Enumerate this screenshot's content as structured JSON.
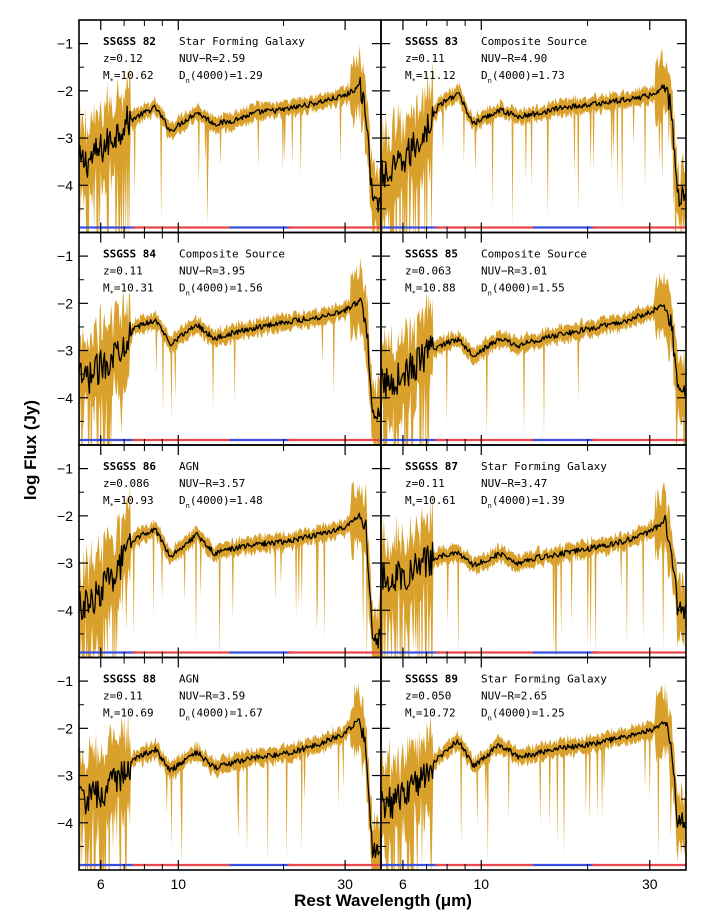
{
  "figure": {
    "ylabel": "log Flux (Jy)",
    "xlabel": "Rest Wavelength (μm)"
  },
  "style": {
    "error_color": "#d9a12b",
    "spectrum_color": "#000000",
    "bar_red": "#e8474b",
    "bar_blue": "#3b4fe0"
  },
  "chart_data": {
    "type": "line",
    "layout": "grid 4x2 panels, shared axes",
    "xscale": "log",
    "xlim": [
      5.2,
      38
    ],
    "ylim": [
      -5,
      -0.5
    ],
    "xticks_major": [
      6,
      10,
      30
    ],
    "xticks_minor": [
      5,
      7,
      8,
      9,
      20,
      40
    ],
    "yticks": [
      -4,
      -3,
      -2,
      -1
    ],
    "legend": "none",
    "grid": false,
    "coverage_bars": [
      {
        "color": "blue",
        "x": [
          5.2,
          7.6
        ]
      },
      {
        "color": "red",
        "x": [
          7.4,
          14.2
        ]
      },
      {
        "color": "blue",
        "x": [
          14.0,
          21.3
        ]
      },
      {
        "color": "red",
        "x": [
          20.6,
          38.0
        ]
      }
    ],
    "panels": [
      {
        "id": "SSGSS 82",
        "klass": "Star Forming Galaxy",
        "z": "z=0.12",
        "mass_val": "=10.62",
        "nuvr": "NUV−R=2.59",
        "dn_val": "(4000)=1.29",
        "series": {
          "x": [
            5.5,
            6.3,
            7.0,
            7.6,
            8.6,
            9.5,
            11.3,
            12.7,
            14.0,
            17.0,
            20.0,
            25.0,
            30.0,
            33.0,
            34.5,
            36.0
          ],
          "y": [
            -3.5,
            -3.1,
            -2.7,
            -2.55,
            -2.35,
            -2.85,
            -2.45,
            -2.7,
            -2.65,
            -2.45,
            -2.4,
            -2.25,
            -2.1,
            -1.9,
            -2.5,
            -4.4
          ]
        }
      },
      {
        "id": "SSGSS 83",
        "klass": "Composite Source",
        "z": "z=0.11",
        "mass_val": "=11.12",
        "nuvr": "NUV−R=4.90",
        "dn_val": "(4000)=1.73",
        "series": {
          "x": [
            5.5,
            6.3,
            7.0,
            7.6,
            8.6,
            9.5,
            11.3,
            12.7,
            14.0,
            17.0,
            20.0,
            25.0,
            30.0,
            33.0,
            34.5,
            36.0
          ],
          "y": [
            -3.8,
            -3.3,
            -2.8,
            -2.3,
            -2.05,
            -2.7,
            -2.4,
            -2.55,
            -2.5,
            -2.35,
            -2.3,
            -2.2,
            -2.1,
            -1.9,
            -2.3,
            -4.2
          ]
        }
      },
      {
        "id": "SSGSS 84",
        "klass": "Composite Source",
        "z": "z=0.11",
        "mass_val": "=10.31",
        "nuvr": "NUV−R=3.95",
        "dn_val": "(4000)=1.56",
        "series": {
          "x": [
            5.5,
            6.3,
            7.0,
            7.6,
            8.6,
            9.5,
            11.3,
            12.7,
            14.0,
            17.0,
            20.0,
            25.0,
            30.0,
            33.0,
            34.5,
            36.0
          ],
          "y": [
            -3.6,
            -3.2,
            -2.8,
            -2.5,
            -2.35,
            -2.85,
            -2.45,
            -2.75,
            -2.65,
            -2.5,
            -2.4,
            -2.3,
            -2.15,
            -1.95,
            -2.4,
            -4.3
          ]
        }
      },
      {
        "id": "SSGSS 85",
        "klass": "Composite Source",
        "z": "z=0.063",
        "mass_val": "=10.88",
        "nuvr": "NUV−R=3.01",
        "dn_val": "(4000)=1.55",
        "series": {
          "x": [
            5.5,
            6.3,
            7.0,
            7.6,
            8.6,
            9.5,
            11.3,
            12.7,
            14.0,
            17.0,
            20.0,
            25.0,
            30.0,
            33.0,
            34.5,
            36.0
          ],
          "y": [
            -3.7,
            -3.4,
            -3.1,
            -2.9,
            -2.75,
            -3.1,
            -2.75,
            -2.9,
            -2.8,
            -2.65,
            -2.55,
            -2.4,
            -2.2,
            -2.0,
            -2.4,
            -3.8
          ]
        }
      },
      {
        "id": "SSGSS 86",
        "klass": "AGN",
        "z": "z=0.086",
        "mass_val": "=10.93",
        "nuvr": "NUV−R=3.57",
        "dn_val": "(4000)=1.48",
        "series": {
          "x": [
            5.5,
            6.3,
            7.0,
            7.6,
            8.6,
            9.5,
            11.3,
            12.7,
            14.0,
            17.0,
            20.0,
            25.0,
            30.0,
            33.0,
            34.5,
            36.0
          ],
          "y": [
            -3.9,
            -3.4,
            -2.9,
            -2.45,
            -2.3,
            -2.85,
            -2.4,
            -2.8,
            -2.7,
            -2.6,
            -2.55,
            -2.4,
            -2.25,
            -2.0,
            -2.3,
            -4.6
          ]
        }
      },
      {
        "id": "SSGSS 87",
        "klass": "Star Forming Galaxy",
        "z": "z=0.11",
        "mass_val": "=10.61",
        "nuvr": "NUV−R=3.47",
        "dn_val": "(4000)=1.39",
        "series": {
          "x": [
            5.5,
            6.3,
            7.0,
            7.6,
            8.6,
            9.5,
            11.3,
            12.7,
            14.0,
            17.0,
            20.0,
            25.0,
            30.0,
            33.0,
            34.5,
            36.0
          ],
          "y": [
            -3.3,
            -3.2,
            -2.95,
            -2.85,
            -2.8,
            -3.05,
            -2.8,
            -3.0,
            -2.9,
            -2.8,
            -2.7,
            -2.55,
            -2.35,
            -2.1,
            -2.6,
            -4.0
          ]
        }
      },
      {
        "id": "SSGSS 88",
        "klass": "AGN",
        "z": "z=0.11",
        "mass_val": "=10.69",
        "nuvr": "NUV−R=3.59",
        "dn_val": "(4000)=1.67",
        "series": {
          "x": [
            5.5,
            6.3,
            7.0,
            7.6,
            8.6,
            9.5,
            11.3,
            12.7,
            14.0,
            17.0,
            20.0,
            25.0,
            30.0,
            33.0,
            34.5,
            36.0
          ],
          "y": [
            -3.5,
            -3.3,
            -2.9,
            -2.6,
            -2.45,
            -2.9,
            -2.5,
            -2.85,
            -2.75,
            -2.6,
            -2.55,
            -2.35,
            -2.1,
            -1.8,
            -2.5,
            -4.6
          ]
        }
      },
      {
        "id": "SSGSS 89",
        "klass": "Star Forming Galaxy",
        "z": "z=0.050",
        "mass_val": "=10.72",
        "nuvr": "NUV−R=2.65",
        "dn_val": "(4000)=1.25",
        "series": {
          "x": [
            5.5,
            6.3,
            7.0,
            7.6,
            8.6,
            9.5,
            11.3,
            12.7,
            14.0,
            17.0,
            20.0,
            25.0,
            30.0,
            33.0,
            34.5,
            36.0
          ],
          "y": [
            -3.6,
            -3.3,
            -2.9,
            -2.6,
            -2.25,
            -2.8,
            -2.35,
            -2.6,
            -2.55,
            -2.4,
            -2.35,
            -2.2,
            -2.05,
            -1.85,
            -2.3,
            -4.0
          ]
        }
      }
    ]
  }
}
